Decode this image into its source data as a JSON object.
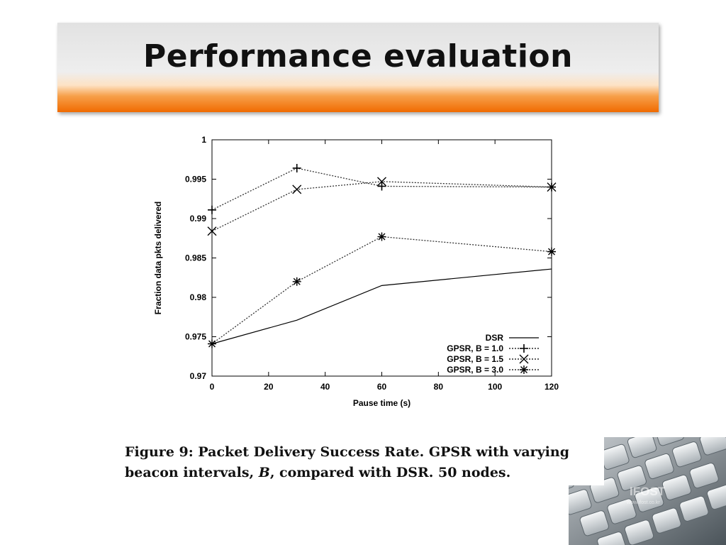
{
  "slide": {
    "title": "Performance evaluation",
    "caption_before": "Figure 9:  Packet Delivery Success Rate.  GPSR with varying beacon intervals, ",
    "caption_var": "B",
    "caption_after": ", compared with DSR. 50 nodes.",
    "watermark": "IFOST",
    "watermark_sub": "www.ifost.co.kr"
  },
  "chart_data": {
    "type": "line",
    "xlabel": "Pause time (s)",
    "ylabel": "Fraction data pkts delivered",
    "xlim": [
      0,
      120
    ],
    "ylim": [
      0.97,
      1
    ],
    "xticks": [
      0,
      20,
      40,
      60,
      80,
      100,
      120
    ],
    "yticks": [
      0.97,
      0.975,
      0.98,
      0.985,
      0.99,
      0.995,
      1
    ],
    "ytick_labels": [
      "0.97",
      "0.975",
      "0.98",
      "0.985",
      "0.99",
      "0.995",
      "1"
    ],
    "legend_position": "bottom-right",
    "grid": false,
    "series": [
      {
        "name": "DSR",
        "marker": "none",
        "dashed": false,
        "x": [
          0,
          30,
          60,
          120
        ],
        "y": [
          0.9741,
          0.9771,
          0.9815,
          0.9836
        ]
      },
      {
        "name": "GPSR, B = 1.0",
        "marker": "plus",
        "dashed": true,
        "x": [
          0,
          30,
          60,
          120
        ],
        "y": [
          0.9911,
          0.9964,
          0.9941,
          0.994
        ]
      },
      {
        "name": "GPSR, B = 1.5",
        "marker": "x",
        "dashed": true,
        "x": [
          0,
          30,
          60,
          120
        ],
        "y": [
          0.9884,
          0.9937,
          0.9947,
          0.994
        ]
      },
      {
        "name": "GPSR, B = 3.0",
        "marker": "star",
        "dashed": true,
        "x": [
          0,
          30,
          60,
          120
        ],
        "y": [
          0.9741,
          0.982,
          0.9877,
          0.9858
        ]
      }
    ]
  }
}
